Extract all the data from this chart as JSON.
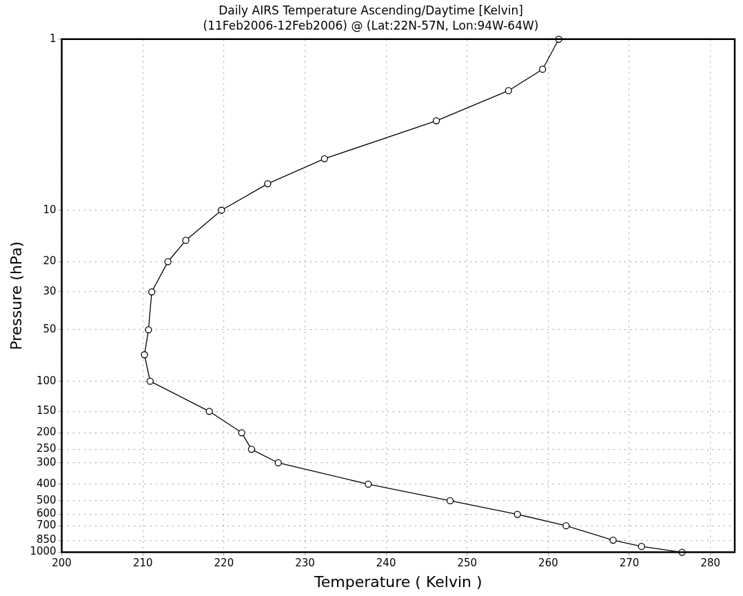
{
  "chart_data": {
    "type": "line",
    "title": "Daily AIRS Temperature Ascending/Daytime [Kelvin]",
    "subtitle": "(11Feb2006-12Feb2006) @ (Lat:22N-57N, Lon:94W-64W)",
    "xlabel": "Temperature ( Kelvin )",
    "ylabel": "Pressure (hPa)",
    "series": [
      {
        "color": "#000000",
        "x": [
          261.3,
          259.3,
          255.1,
          246.2,
          232.4,
          225.4,
          219.7,
          215.3,
          213.1,
          211.1,
          210.7,
          210.2,
          210.9,
          218.2,
          222.2,
          223.4,
          226.7,
          237.8,
          247.9,
          256.2,
          262.2,
          268.0,
          271.5,
          276.5
        ],
        "values": [
          1,
          1.5,
          2,
          3,
          5,
          7,
          10,
          15,
          20,
          30,
          50,
          70,
          100,
          150,
          200,
          250,
          300,
          400,
          500,
          600,
          700,
          850,
          925,
          1000
        ]
      }
    ],
    "xlim": [
      200,
      283
    ],
    "xticks": [
      200,
      210,
      220,
      230,
      240,
      250,
      260,
      270,
      280
    ],
    "ylim": [
      1000,
      1
    ],
    "yticks": [
      1,
      10,
      20,
      30,
      50,
      100,
      150,
      200,
      250,
      300,
      400,
      500,
      600,
      700,
      850,
      1000
    ],
    "log": "y",
    "grid": true,
    "legend": false,
    "marker": "circle",
    "line_style": "solid"
  }
}
